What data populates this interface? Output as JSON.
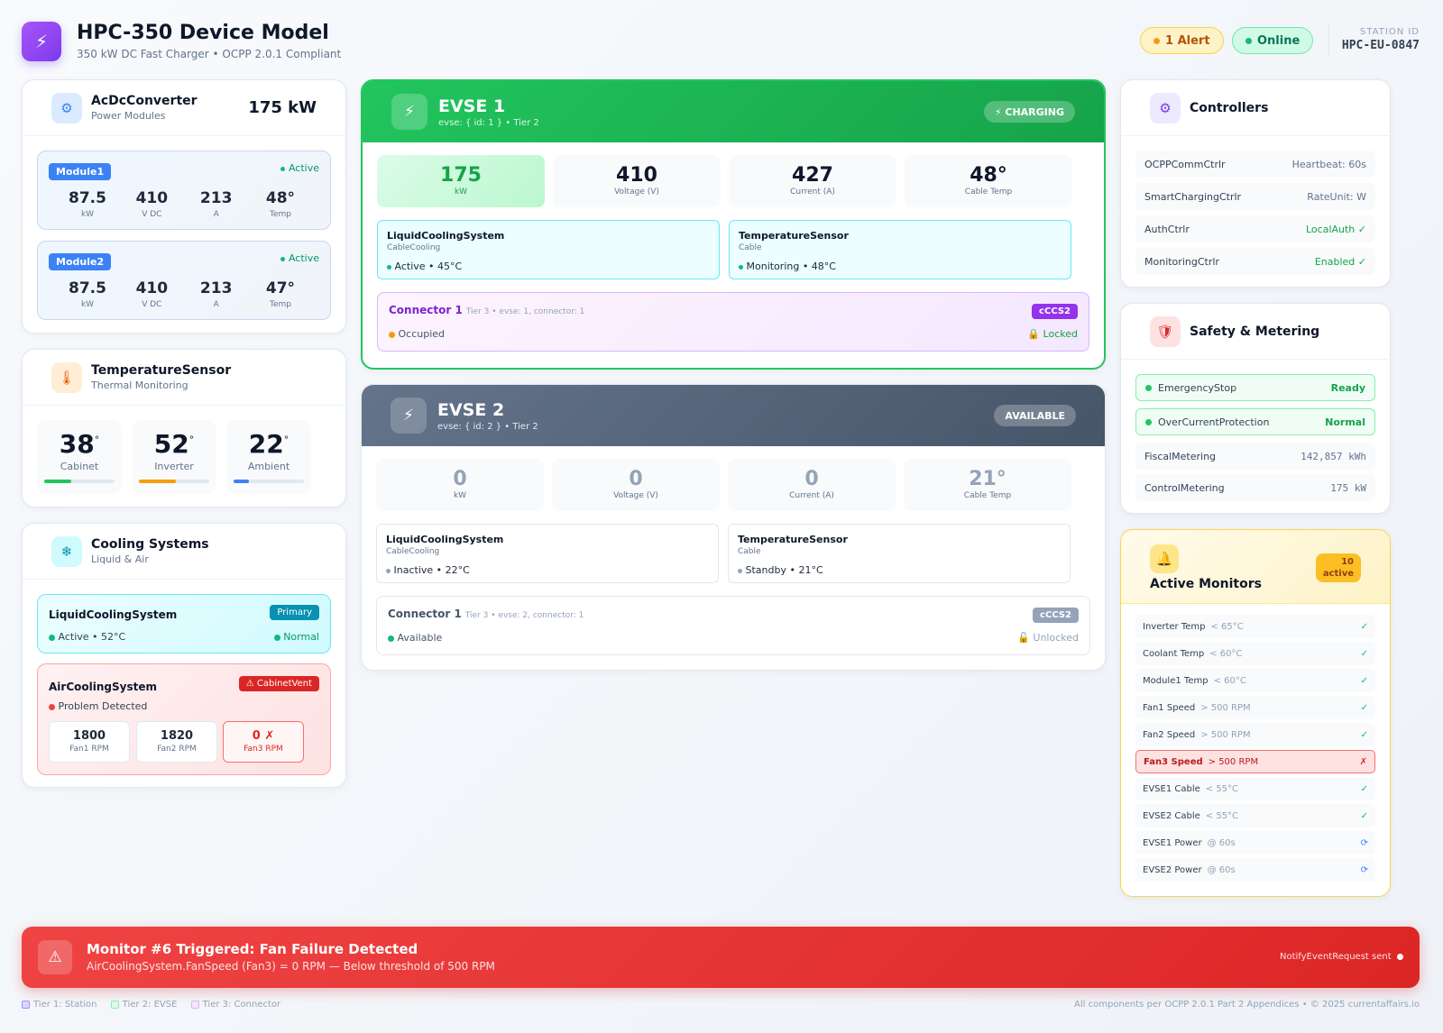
{
  "header": {
    "logo_icon": "⚡",
    "title": "HPC-350 Device Model",
    "subtitle": "350 kW DC Fast Charger • OCPP 2.0.1 Compliant",
    "alert_label": "1 Alert",
    "online_label": "Online",
    "station_id_label": "STATION ID",
    "station_id": "HPC-EU-0847"
  },
  "acdc": {
    "icon": "⚙",
    "title": "AcDcConverter",
    "subtitle": "Power Modules",
    "power": "175 kW",
    "modules": [
      {
        "tag": "Module1",
        "status": "Active",
        "values": [
          {
            "n": "87.5",
            "u": "kW"
          },
          {
            "n": "410",
            "u": "V DC"
          },
          {
            "n": "213",
            "u": "A"
          },
          {
            "n": "48°",
            "u": "Temp"
          }
        ]
      },
      {
        "tag": "Module2",
        "status": "Active",
        "values": [
          {
            "n": "87.5",
            "u": "kW"
          },
          {
            "n": "410",
            "u": "V DC"
          },
          {
            "n": "213",
            "u": "A"
          },
          {
            "n": "47°",
            "u": "Temp"
          }
        ]
      }
    ]
  },
  "tempsensor": {
    "icon": "🌡",
    "title": "TemperatureSensor",
    "subtitle": "Thermal Monitoring",
    "sensors": [
      {
        "value": "38",
        "unit": "°",
        "label": "Cabinet",
        "level": 0.38
      },
      {
        "value": "52",
        "unit": "°",
        "label": "Inverter",
        "level": 0.52
      },
      {
        "value": "22",
        "unit": "°",
        "label": "Ambient",
        "level": 0.22
      }
    ]
  },
  "cooling": {
    "icon": "❄",
    "title": "Cooling Systems",
    "subtitle": "Liquid & Air",
    "liquid": {
      "title": "LiquidCoolingSystem",
      "tag": "Primary",
      "status": "Active • 52°C",
      "state": "Normal"
    },
    "air": {
      "title": "AirCoolingSystem",
      "tag": "⚠ CabinetVent",
      "status": "Problem Detected",
      "fans": [
        {
          "n": "1800",
          "l": "Fan1 RPM"
        },
        {
          "n": "1820",
          "l": "Fan2 RPM"
        },
        {
          "n": "0 ✗",
          "l": "Fan3 RPM"
        }
      ]
    }
  },
  "evse1": {
    "icon": "⚡",
    "title": "EVSE 1",
    "subtitle": "evse: { id: 1 } • Tier 2",
    "badge": "⚡ CHARGING",
    "stats": [
      {
        "n": "175",
        "l": "kW"
      },
      {
        "n": "410",
        "l": "Voltage (V)"
      },
      {
        "n": "427",
        "l": "Current (A)"
      },
      {
        "n": "48°",
        "l": "Cable Temp"
      }
    ],
    "subs": [
      {
        "t": "LiquidCoolingSystem",
        "s": "CableCooling",
        "v": "Active • 45°C"
      },
      {
        "t": "TemperatureSensor",
        "s": "Cable",
        "v": "Monitoring • 48°C"
      }
    ],
    "connector": {
      "title": "Connector 1",
      "meta": "Tier 3 • evse: 1, connector: 1",
      "tag": "cCCS2",
      "status": "Occupied",
      "lock": "🔒 Locked"
    }
  },
  "evse2": {
    "icon": "⚡",
    "title": "EVSE 2",
    "subtitle": "evse: { id: 2 } • Tier 2",
    "badge": "AVAILABLE",
    "stats": [
      {
        "n": "0",
        "l": "kW"
      },
      {
        "n": "0",
        "l": "Voltage (V)"
      },
      {
        "n": "0",
        "l": "Current (A)"
      },
      {
        "n": "21°",
        "l": "Cable Temp"
      }
    ],
    "subs": [
      {
        "t": "LiquidCoolingSystem",
        "s": "CableCooling",
        "v": "Inactive • 22°C"
      },
      {
        "t": "TemperatureSensor",
        "s": "Cable",
        "v": "Standby • 21°C"
      }
    ],
    "connector": {
      "title": "Connector 1",
      "meta": "Tier 3 • evse: 2, connector: 1",
      "tag": "cCCS2",
      "status": "Available",
      "lock": "🔓 Unlocked"
    }
  },
  "controllers": {
    "icon": "⚙",
    "title": "Controllers",
    "rows": [
      {
        "k": "OCPPCommCtrlr",
        "v": "Heartbeat: 60s"
      },
      {
        "k": "SmartChargingCtrlr",
        "v": "RateUnit: W"
      },
      {
        "k": "AuthCtrlr",
        "v": "LocalAuth ✓"
      },
      {
        "k": "MonitoringCtrlr",
        "v": "Enabled ✓"
      }
    ]
  },
  "safety": {
    "icon": "🛡",
    "title": "Safety & Metering",
    "rows": [
      {
        "k": "EmergencyStop",
        "v": "Ready"
      },
      {
        "k": "OverCurrentProtection",
        "v": "Normal"
      },
      {
        "k": "FiscalMetering",
        "v": "142,857 kWh"
      },
      {
        "k": "ControlMetering",
        "v": "175 kW"
      }
    ]
  },
  "monitors": {
    "icon": "🔔",
    "title": "Active Monitors",
    "count": "10",
    "count_label": "active",
    "items": [
      {
        "k": "Inverter Temp",
        "t": "< 65°C",
        "s": "✓"
      },
      {
        "k": "Coolant Temp",
        "t": "< 60°C",
        "s": "✓"
      },
      {
        "k": "Module1 Temp",
        "t": "< 60°C",
        "s": "✓"
      },
      {
        "k": "Fan1 Speed",
        "t": "> 500 RPM",
        "s": "✓"
      },
      {
        "k": "Fan2 Speed",
        "t": "> 500 RPM",
        "s": "✓"
      },
      {
        "k": "Fan3 Speed",
        "t": "> 500 RPM",
        "s": "✗"
      },
      {
        "k": "EVSE1 Cable",
        "t": "< 55°C",
        "s": "✓"
      },
      {
        "k": "EVSE2 Cable",
        "t": "< 55°C",
        "s": "✓"
      },
      {
        "k": "EVSE1 Power",
        "t": "@ 60s",
        "s": "⟳"
      },
      {
        "k": "EVSE2 Power",
        "t": "@ 60s",
        "s": "⟳"
      }
    ]
  },
  "alert": {
    "icon": "⚠",
    "title": "Monitor #6 Triggered: Fan Failure Detected",
    "message": "AirCoolingSystem.FanSpeed (Fan3) = 0 RPM — Below threshold of 500 RPM",
    "status": "NotifyEventRequest sent"
  },
  "footer": {
    "tiers": [
      "Tier 1: Station",
      "Tier 2: EVSE",
      "Tier 3: Connector"
    ],
    "credit": "All components per OCPP 2.0.1 Part 2 Appendices • © 2025 currentaffairs.io"
  },
  "colors": {
    "accent": "#7c3aed",
    "charging": "#22c55e",
    "available": "#64748b",
    "alert": "#ef4444",
    "warning": "#f59e0b"
  }
}
